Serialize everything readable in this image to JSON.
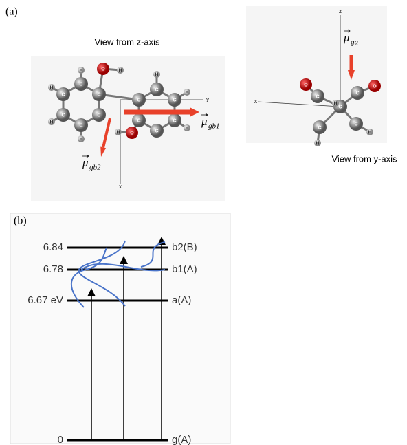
{
  "panel_a": {
    "label": "(a)",
    "view_z": {
      "caption": "View from z-axis",
      "atoms": [
        "C",
        "C",
        "C",
        "C",
        "C",
        "C",
        "C",
        "C",
        "C",
        "C",
        "C",
        "C",
        "O",
        "H",
        "O",
        "H",
        "H",
        "H",
        "H",
        "H",
        "H",
        "H",
        "H"
      ],
      "axes": [
        "y",
        "x"
      ],
      "vectors": [
        {
          "symbol": "μ",
          "subscript": "gb1"
        },
        {
          "symbol": "μ",
          "subscript": "gb2"
        }
      ]
    },
    "view_y": {
      "caption": "View from y-axis",
      "atoms": [
        "C",
        "H",
        "C",
        "O",
        "C",
        "O",
        "C",
        "H",
        "C",
        "H"
      ],
      "axes": [
        "x",
        "z"
      ],
      "vectors": [
        {
          "symbol": "μ",
          "subscript": "ga"
        }
      ]
    }
  },
  "panel_b": {
    "label": "(b)",
    "levels": [
      {
        "energy": "6.84",
        "state": "b2(B)"
      },
      {
        "energy": "6.78",
        "state": "b1(A)"
      },
      {
        "energy": "6.67 eV",
        "state": "a(A)"
      },
      {
        "energy": "0",
        "state": "g(A)"
      }
    ]
  }
}
